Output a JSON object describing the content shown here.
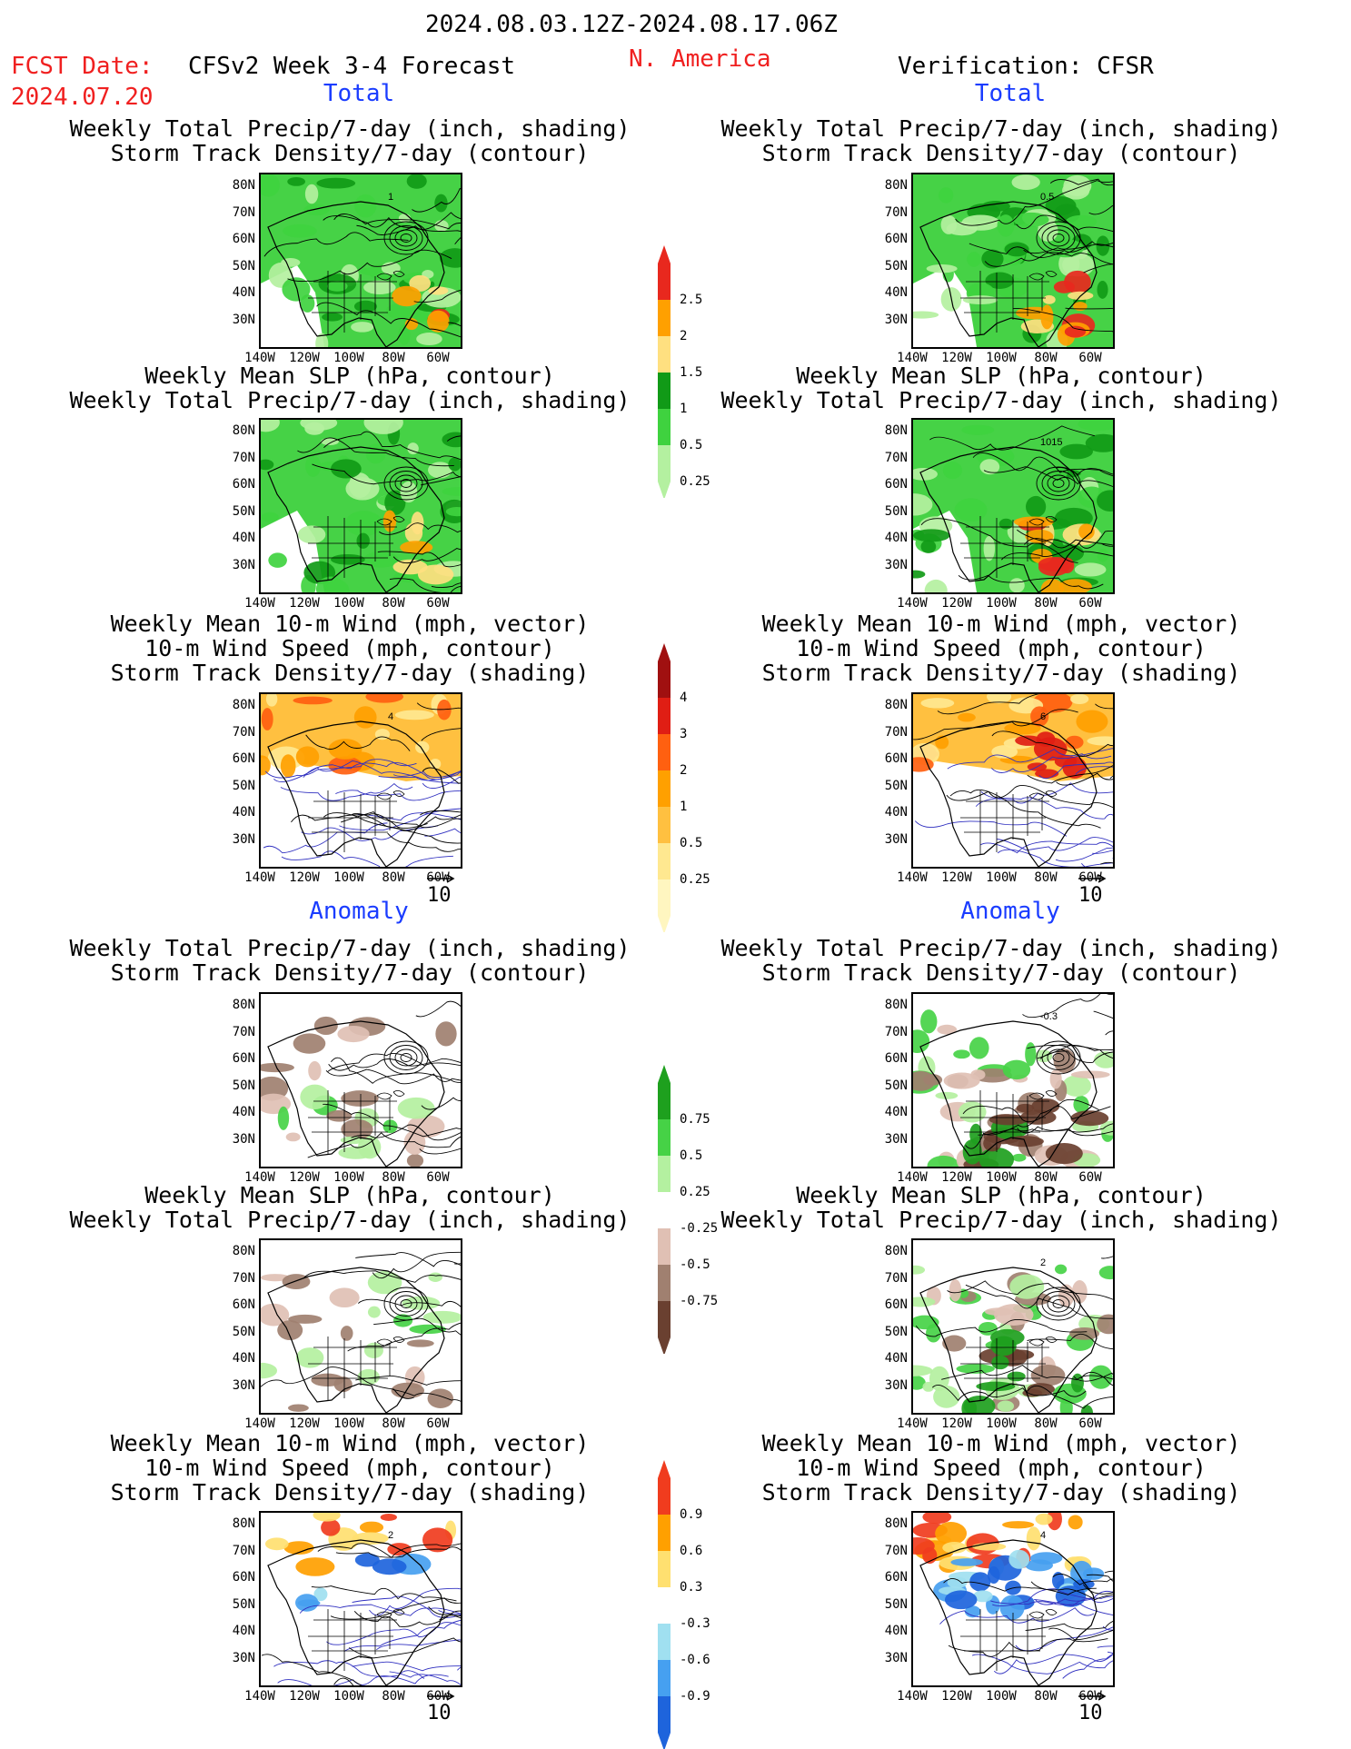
{
  "header": {
    "period": "2024.08.03.12Z-2024.08.17.06Z",
    "fcst_label": "FCST Date:",
    "fcst_date": "2024.07.20",
    "model": "CFSv2 Week 3-4 Forecast",
    "region": "N. America",
    "verification": "Verification: CFSR"
  },
  "sections": {
    "total": "Total",
    "anomaly": "Anomaly"
  },
  "titles": {
    "precip_track": [
      "Weekly Total Precip/7-day (inch, shading)",
      "Storm Track Density/7-day (contour)"
    ],
    "slp_precip": [
      "Weekly Mean SLP (hPa, contour)",
      "Weekly Total Precip/7-day (inch, shading)"
    ],
    "wind": [
      "Weekly Mean 10-m Wind (mph, vector)",
      "10-m Wind Speed (mph, contour)",
      "Storm Track Density/7-day (shading)"
    ]
  },
  "axes": {
    "lat": [
      "80N",
      "70N",
      "60N",
      "50N",
      "40N",
      "30N"
    ],
    "lon": [
      "140W",
      "120W",
      "100W",
      "80W",
      "60W"
    ]
  },
  "vector_ref": "10",
  "colorbars": {
    "precip_total": {
      "labels": [
        "2.5",
        "2",
        "1.5",
        "1",
        "0.5",
        "0.25"
      ],
      "colors": [
        "#e8281e",
        "#ffa000",
        "#ffe080",
        "#119a17",
        "#3fd23f",
        "#b4f0a0"
      ]
    },
    "track_total": {
      "labels": [
        "4",
        "3",
        "2",
        "1",
        "0.5",
        "0.25"
      ],
      "colors": [
        "#a01010",
        "#e01e14",
        "#ff6010",
        "#ffa000",
        "#ffc040",
        "#ffe890",
        "#fff6c0"
      ]
    },
    "precip_anom": {
      "labels": [
        "0.75",
        "0.5",
        "0.25",
        "-0.25",
        "-0.5",
        "-0.75"
      ],
      "colors": [
        "#1ea01e",
        "#46d246",
        "#b4f0a0",
        "#ffffff",
        "#e0c0b4",
        "#a08070",
        "#6a4030"
      ]
    },
    "track_anom": {
      "labels": [
        "0.9",
        "0.6",
        "0.3",
        "-0.3",
        "-0.6",
        "-0.9"
      ],
      "colors": [
        "#f03c1e",
        "#ffa000",
        "#ffe070",
        "#ffffff",
        "#a0e0f0",
        "#46a0f0",
        "#1e64dc"
      ]
    }
  },
  "panel_annotations": {
    "fc_precip_total": "1",
    "vr_precip_total": "0.5",
    "vr_slp_total": "1015",
    "fc_wind_total": "4",
    "vr_wind_total": "6",
    "vr_precip_anom": "-0.3",
    "vr_slp_anom": "2",
    "fc_wind_anom": "2",
    "vr_wind_anom": "4"
  }
}
